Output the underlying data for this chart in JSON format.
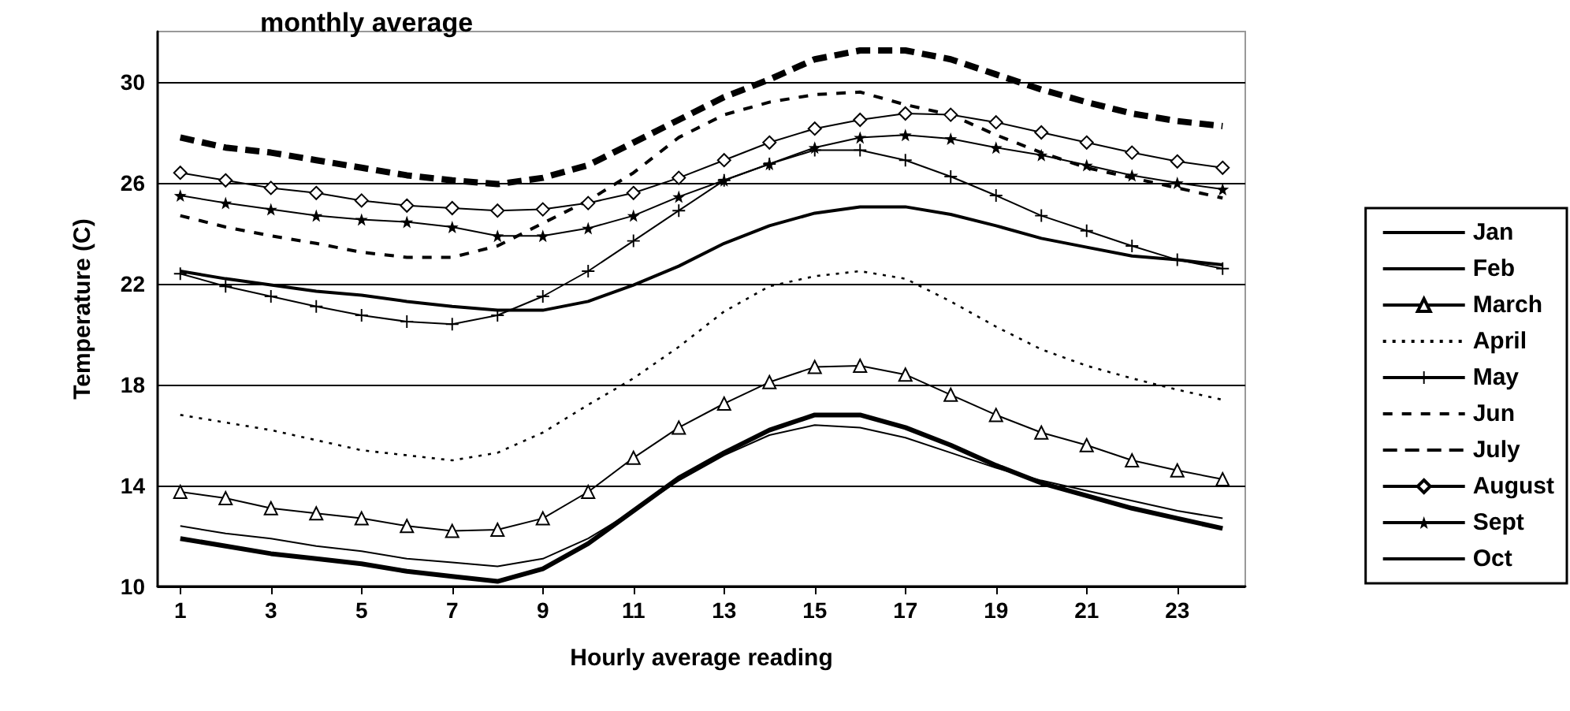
{
  "chart_data": {
    "type": "line",
    "xlabel": "Hourly average reading",
    "ylabel": "Temperature (C)",
    "annotations": [
      "monthly average"
    ],
    "x": [
      1,
      2,
      3,
      4,
      5,
      6,
      7,
      8,
      9,
      10,
      11,
      12,
      13,
      14,
      15,
      16,
      17,
      18,
      19,
      20,
      21,
      22,
      23,
      24
    ],
    "xlim": [
      0.5,
      24.5
    ],
    "xticks": [
      1,
      3,
      5,
      7,
      9,
      11,
      13,
      15,
      17,
      19,
      21,
      23
    ],
    "ylim": [
      10,
      32
    ],
    "yticks": [
      10,
      14,
      18,
      22,
      26,
      30
    ],
    "grid": "y",
    "legend": "right",
    "series": [
      {
        "name": "Jan",
        "color": "#000000",
        "marker": "none",
        "line_style": "solid",
        "values": [
          12.4,
          12.1,
          11.9,
          11.6,
          11.4,
          11.1,
          10.95,
          10.8,
          11.1,
          11.9,
          13.0,
          14.2,
          15.2,
          16.0,
          16.4,
          16.3,
          15.9,
          15.3,
          14.7,
          14.2,
          13.8,
          13.4,
          13.0,
          12.7
        ]
      },
      {
        "name": "Feb",
        "color": "#000000",
        "marker": "none",
        "line_style": "solid",
        "values": [
          11.9,
          11.6,
          11.3,
          11.1,
          10.9,
          10.6,
          10.4,
          10.2,
          10.7,
          11.7,
          13.0,
          14.3,
          15.3,
          16.2,
          16.8,
          16.8,
          16.3,
          15.6,
          14.8,
          14.1,
          13.6,
          13.1,
          12.7,
          12.3
        ]
      },
      {
        "name": "March",
        "color": "#000000",
        "marker": "triangle",
        "line_style": "solid",
        "values": [
          13.75,
          13.5,
          13.1,
          12.9,
          12.7,
          12.4,
          12.2,
          12.25,
          12.7,
          13.75,
          15.1,
          16.3,
          17.25,
          18.1,
          18.7,
          18.75,
          18.4,
          17.6,
          16.8,
          16.1,
          15.6,
          15.0,
          14.6,
          14.25
        ]
      },
      {
        "name": "April",
        "color": "#000000",
        "marker": "none",
        "line_style": "dotted",
        "values": [
          16.8,
          16.5,
          16.2,
          15.8,
          15.4,
          15.2,
          15.0,
          15.3,
          16.1,
          17.2,
          18.25,
          19.5,
          20.9,
          21.9,
          22.3,
          22.5,
          22.2,
          21.3,
          20.3,
          19.4,
          18.75,
          18.25,
          17.8,
          17.4
        ]
      },
      {
        "name": "May",
        "color": "#000000",
        "marker": "cross",
        "line_style": "solid",
        "values": [
          22.4,
          21.9,
          21.5,
          21.1,
          20.75,
          20.5,
          20.4,
          20.75,
          21.5,
          22.5,
          23.7,
          24.9,
          26.1,
          26.75,
          27.3,
          27.3,
          26.9,
          26.25,
          25.5,
          24.7,
          24.1,
          23.5,
          22.95,
          22.6
        ]
      },
      {
        "name": "Jun",
        "color": "#000000",
        "marker": "none",
        "line_style": "dashed",
        "values": [
          24.7,
          24.25,
          23.9,
          23.6,
          23.25,
          23.05,
          23.05,
          23.5,
          24.4,
          25.3,
          26.4,
          27.8,
          28.7,
          29.2,
          29.5,
          29.6,
          29.1,
          28.7,
          27.9,
          27.2,
          26.6,
          26.2,
          25.8,
          25.4
        ]
      },
      {
        "name": "July",
        "color": "#000000",
        "marker": "none",
        "line_style": "dashed",
        "values": [
          27.8,
          27.4,
          27.2,
          26.9,
          26.6,
          26.3,
          26.1,
          25.95,
          26.2,
          26.7,
          27.6,
          28.5,
          29.4,
          30.1,
          30.9,
          31.25,
          31.25,
          30.9,
          30.3,
          29.7,
          29.2,
          28.75,
          28.45,
          28.25
        ]
      },
      {
        "name": "August",
        "color": "#000000",
        "marker": "diamond",
        "line_style": "solid",
        "values": [
          26.4,
          26.1,
          25.8,
          25.6,
          25.3,
          25.1,
          25.0,
          24.9,
          24.95,
          25.2,
          25.6,
          26.2,
          26.9,
          27.6,
          28.15,
          28.5,
          28.75,
          28.7,
          28.4,
          28.0,
          27.6,
          27.2,
          26.85,
          26.6
        ]
      },
      {
        "name": "Sept",
        "color": "#000000",
        "marker": "star",
        "line_style": "solid",
        "values": [
          25.5,
          25.2,
          24.95,
          24.7,
          24.55,
          24.45,
          24.25,
          23.9,
          23.9,
          24.2,
          24.7,
          25.45,
          26.1,
          26.75,
          27.4,
          27.8,
          27.9,
          27.75,
          27.4,
          27.1,
          26.7,
          26.3,
          26.0,
          25.75
        ]
      },
      {
        "name": "Oct",
        "color": "#000000",
        "marker": "none",
        "line_style": "solid",
        "values": [
          22.5,
          22.2,
          21.95,
          21.7,
          21.55,
          21.3,
          21.1,
          20.95,
          20.95,
          21.3,
          21.95,
          22.7,
          23.6,
          24.3,
          24.8,
          25.05,
          25.05,
          24.75,
          24.3,
          23.8,
          23.45,
          23.1,
          22.95,
          22.75
        ]
      }
    ]
  }
}
